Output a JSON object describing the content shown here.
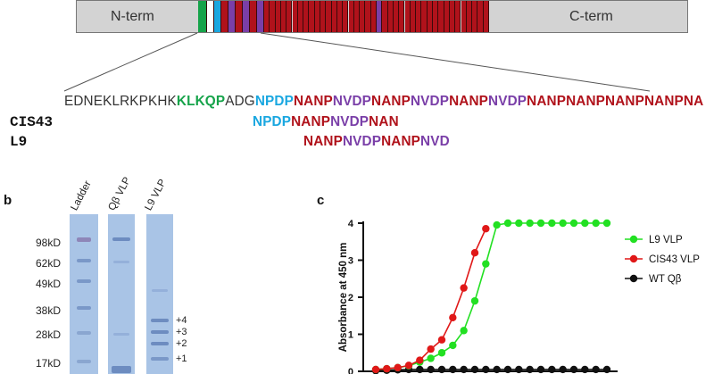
{
  "panel_a": {
    "nterm_label": "N-term",
    "cterm_label": "C-term",
    "colors": {
      "bar_gray": "#d3d3d3",
      "green": "#16a34a",
      "cyan": "#1aa7e0",
      "red": "#b0121b",
      "purple": "#7a3fa8"
    },
    "sequence_segments": [
      {
        "text": "EDNEKLRKPKHK",
        "color": "black"
      },
      {
        "text": "KLKQP",
        "color": "green"
      },
      {
        "text": "ADG",
        "color": "black"
      },
      {
        "text": "NPDP",
        "color": "cyan"
      },
      {
        "text": "NANP",
        "color": "red"
      },
      {
        "text": "NVDP",
        "color": "purple"
      },
      {
        "text": "NANP",
        "color": "red"
      },
      {
        "text": "NVDP",
        "color": "purple"
      },
      {
        "text": "NANP",
        "color": "red"
      },
      {
        "text": "NVDP",
        "color": "purple"
      },
      {
        "text": "NANPNANPNANPNANPNA",
        "color": "red"
      }
    ],
    "cis43_name": "CIS43",
    "cis43_segments": [
      {
        "text": "NPDP",
        "color": "cyan"
      },
      {
        "text": "NANP",
        "color": "red"
      },
      {
        "text": "NVDP",
        "color": "purple"
      },
      {
        "text": "NAN",
        "color": "red"
      }
    ],
    "l9_name": "L9",
    "l9_segments": [
      {
        "text": "NANP",
        "color": "red"
      },
      {
        "text": "NVDP",
        "color": "purple"
      },
      {
        "text": "NANP",
        "color": "red"
      },
      {
        "text": "NVD",
        "color": "purple"
      }
    ]
  },
  "panel_b": {
    "letter": "b",
    "lane_labels": [
      "Ladder",
      "Qβ VLP",
      "L9 VLP"
    ],
    "mw_markers": [
      "98kD",
      "62kD",
      "49kD",
      "38kD",
      "28kD",
      "17kD"
    ],
    "conjugate_labels": [
      "+4",
      "+3",
      "+2",
      "+1"
    ]
  },
  "panel_c": {
    "letter": "c",
    "chart_data": {
      "type": "line",
      "ylabel": "Absorbance at 450 nm",
      "xlabel": "",
      "ylim": [
        0,
        4
      ],
      "yticks": [
        0,
        1,
        2,
        3,
        4
      ],
      "x": [
        1,
        2,
        3,
        4,
        5,
        6,
        7,
        8,
        9,
        10,
        11,
        12,
        13,
        14,
        15,
        16,
        17,
        18,
        19,
        20,
        21,
        22
      ],
      "legend_position": "right",
      "series": [
        {
          "name": "L9 VLP",
          "color": "#22e022",
          "values": [
            0.05,
            0.07,
            0.1,
            0.15,
            0.25,
            0.35,
            0.5,
            0.7,
            1.1,
            1.9,
            2.9,
            3.95,
            4.0,
            4.0,
            4.0,
            4.0,
            4.0,
            4.0,
            4.0,
            4.0,
            4.0,
            4.0
          ]
        },
        {
          "name": "CIS43 VLP",
          "color": "#e01818",
          "values": [
            0.05,
            0.07,
            0.1,
            0.16,
            0.3,
            0.6,
            0.85,
            1.45,
            2.25,
            3.2,
            3.85,
            null,
            null,
            null,
            null,
            null,
            null,
            null,
            null,
            null,
            null,
            null
          ]
        },
        {
          "name": "WT Qβ",
          "color": "#111111",
          "values": [
            0.02,
            0.03,
            0.04,
            0.05,
            0.05,
            0.05,
            0.05,
            0.05,
            0.05,
            0.05,
            0.05,
            0.05,
            0.05,
            0.05,
            0.05,
            0.05,
            0.05,
            0.05,
            0.05,
            0.05,
            0.05,
            0.05
          ]
        }
      ]
    }
  }
}
